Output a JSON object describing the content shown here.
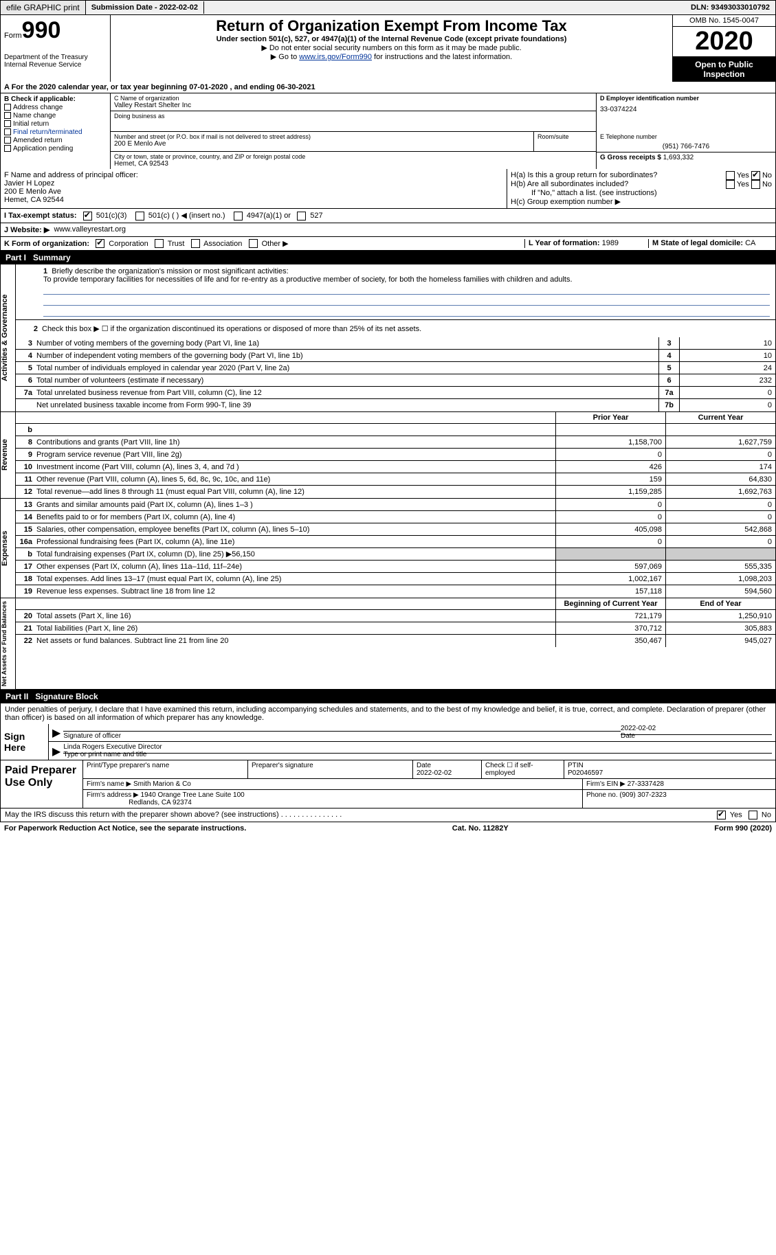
{
  "topbar": {
    "efile": "efile GRAPHIC print",
    "submission": "Submission Date - 2022-02-02",
    "dln": "DLN: 93493033010792"
  },
  "header": {
    "form_label": "Form",
    "form_no": "990",
    "dept": "Department of the Treasury\nInternal Revenue Service",
    "title": "Return of Organization Exempt From Income Tax",
    "subtitle": "Under section 501(c), 527, or 4947(a)(1) of the Internal Revenue Code (except private foundations)",
    "note1": "▶ Do not enter social security numbers on this form as it may be made public.",
    "note2_pre": "▶ Go to ",
    "note2_link": "www.irs.gov/Form990",
    "note2_post": " for instructions and the latest information.",
    "omb": "OMB No. 1545-0047",
    "year": "2020",
    "inspect": "Open to Public Inspection"
  },
  "lineA": "A For the 2020 calendar year, or tax year beginning 07-01-2020     , and ending 06-30-2021",
  "B": {
    "check_label": "B Check if applicable:",
    "items": [
      "Address change",
      "Name change",
      "Initial return",
      "Final return/terminated",
      "Amended return",
      "Application pending"
    ]
  },
  "C": {
    "name_label": "C Name of organization",
    "name": "Valley Restart Shelter Inc",
    "dba_label": "Doing business as",
    "dba": "",
    "addr_label": "Number and street (or P.O. box if mail is not delivered to street address)",
    "room_label": "Room/suite",
    "addr": "200 E Menlo Ave",
    "city_label": "City or town, state or province, country, and ZIP or foreign postal code",
    "city": "Hemet, CA   92543"
  },
  "D": {
    "label": "D Employer identification number",
    "value": "33-0374224"
  },
  "E": {
    "label": "E Telephone number",
    "value": "(951) 766-7476"
  },
  "G": {
    "label": "G Gross receipts $",
    "value": "1,693,332"
  },
  "F": {
    "label": "F  Name and address of principal officer:",
    "name": "Javier H Lopez",
    "addr1": "200 E Menlo Ave",
    "addr2": "Hemet, CA   92544"
  },
  "H": {
    "a": "H(a)  Is this a group return for subordinates?",
    "b": "H(b) Are all subordinates included?",
    "b_note": "If \"No,\" attach a list. (see instructions)",
    "c": "H(c) Group exemption number ▶",
    "yes": "Yes",
    "no": "No"
  },
  "I": {
    "label": "I    Tax-exempt status:",
    "o1": "501(c)(3)",
    "o2": "501(c) (  )",
    "o2b": "◀ (insert no.)",
    "o3": "4947(a)(1) or",
    "o4": "527"
  },
  "J": {
    "label": "J   Website: ▶",
    "value": "www.valleyrestart.org"
  },
  "K": {
    "label": "K Form of organization:",
    "o1": "Corporation",
    "o2": "Trust",
    "o3": "Association",
    "o4": "Other ▶"
  },
  "L": {
    "label": "L Year of formation:",
    "value": "1989"
  },
  "M": {
    "label": "M State of legal domicile:",
    "value": "CA"
  },
  "part1": {
    "num": "Part I",
    "title": "Summary"
  },
  "summary": {
    "q1": "Briefly describe the organization's mission or most significant activities:",
    "mission": "To provide temporary facilities for necessities of life and for re-entry as a productive member of society, for both the homeless families with children and adults.",
    "q2": "Check this box ▶ ☐  if the organization discontinued its operations or disposed of more than 25% of its net assets.",
    "lines": [
      {
        "n": "3",
        "t": "Number of voting members of the governing body (Part VI, line 1a)",
        "bn": "3",
        "v": "10"
      },
      {
        "n": "4",
        "t": "Number of independent voting members of the governing body (Part VI, line 1b)",
        "bn": "4",
        "v": "10"
      },
      {
        "n": "5",
        "t": "Total number of individuals employed in calendar year 2020 (Part V, line 2a)",
        "bn": "5",
        "v": "24"
      },
      {
        "n": "6",
        "t": "Total number of volunteers (estimate if necessary)",
        "bn": "6",
        "v": "232"
      },
      {
        "n": "7a",
        "t": "Total unrelated business revenue from Part VIII, column (C), line 12",
        "bn": "7a",
        "v": "0"
      },
      {
        "n": "",
        "t": "Net unrelated business taxable income from Form 990-T, line 39",
        "bn": "7b",
        "v": "0"
      }
    ]
  },
  "fin": {
    "hdr_prior": "Prior Year",
    "hdr_curr": "Current Year",
    "revenue_label": "Revenue",
    "expenses_label": "Expenses",
    "net_label": "Net Assets or Fund Balances",
    "revenue": [
      {
        "n": "b",
        "t": "",
        "c1": "",
        "c2": ""
      },
      {
        "n": "8",
        "t": "Contributions and grants (Part VIII, line 1h)",
        "c1": "1,158,700",
        "c2": "1,627,759"
      },
      {
        "n": "9",
        "t": "Program service revenue (Part VIII, line 2g)",
        "c1": "0",
        "c2": "0"
      },
      {
        "n": "10",
        "t": "Investment income (Part VIII, column (A), lines 3, 4, and 7d )",
        "c1": "426",
        "c2": "174"
      },
      {
        "n": "11",
        "t": "Other revenue (Part VIII, column (A), lines 5, 6d, 8c, 9c, 10c, and 11e)",
        "c1": "159",
        "c2": "64,830"
      },
      {
        "n": "12",
        "t": "Total revenue—add lines 8 through 11 (must equal Part VIII, column (A), line 12)",
        "c1": "1,159,285",
        "c2": "1,692,763"
      }
    ],
    "expenses": [
      {
        "n": "13",
        "t": "Grants and similar amounts paid (Part IX, column (A), lines 1–3 )",
        "c1": "0",
        "c2": "0"
      },
      {
        "n": "14",
        "t": "Benefits paid to or for members (Part IX, column (A), line 4)",
        "c1": "0",
        "c2": "0"
      },
      {
        "n": "15",
        "t": "Salaries, other compensation, employee benefits (Part IX, column (A), lines 5–10)",
        "c1": "405,098",
        "c2": "542,868"
      },
      {
        "n": "16a",
        "t": "Professional fundraising fees (Part IX, column (A), line 11e)",
        "c1": "0",
        "c2": "0"
      },
      {
        "n": "b",
        "t": "Total fundraising expenses (Part IX, column (D), line 25) ▶56,150",
        "c1": "shade",
        "c2": "shade"
      },
      {
        "n": "17",
        "t": "Other expenses (Part IX, column (A), lines 11a–11d, 11f–24e)",
        "c1": "597,069",
        "c2": "555,335"
      },
      {
        "n": "18",
        "t": "Total expenses. Add lines 13–17 (must equal Part IX, column (A), line 25)",
        "c1": "1,002,167",
        "c2": "1,098,203"
      },
      {
        "n": "19",
        "t": "Revenue less expenses. Subtract line 18 from line 12",
        "c1": "157,118",
        "c2": "594,560"
      }
    ],
    "net_hdr_prior": "Beginning of Current Year",
    "net_hdr_curr": "End of Year",
    "net": [
      {
        "n": "20",
        "t": "Total assets (Part X, line 16)",
        "c1": "721,179",
        "c2": "1,250,910"
      },
      {
        "n": "21",
        "t": "Total liabilities (Part X, line 26)",
        "c1": "370,712",
        "c2": "305,883"
      },
      {
        "n": "22",
        "t": "Net assets or fund balances. Subtract line 21 from line 20",
        "c1": "350,467",
        "c2": "945,027"
      }
    ]
  },
  "part2": {
    "num": "Part II",
    "title": "Signature Block"
  },
  "sig": {
    "penalty": "Under penalties of perjury, I declare that I have examined this return, including accompanying schedules and statements, and to the best of my knowledge and belief, it is true, correct, and complete. Declaration of preparer (other than officer) is based on all information of which preparer has any knowledge.",
    "sign_here": "Sign Here",
    "sig_officer": "Signature of officer",
    "date_label": "Date",
    "date": "2022-02-02",
    "typed": "Linda Rogers  Executive Director",
    "typed_label": "Type or print name and title"
  },
  "prep": {
    "title": "Paid Preparer Use Only",
    "pt_label": "Print/Type preparer's name",
    "sig_label": "Preparer's signature",
    "date_label": "Date",
    "date": "2022-02-02",
    "check_label": "Check ☐ if self-employed",
    "ptin_label": "PTIN",
    "ptin": "P02046597",
    "firm_name_label": "Firm's name    ▶",
    "firm_name": "Smith Marion & Co",
    "firm_ein_label": "Firm's EIN ▶",
    "firm_ein": "27-3337428",
    "firm_addr_label": "Firm's address ▶",
    "firm_addr1": "1940 Orange Tree Lane Suite 100",
    "firm_addr2": "Redlands, CA   92374",
    "phone_label": "Phone no.",
    "phone": "(909) 307-2323"
  },
  "irs_q": "May the IRS discuss this return with the preparer shown above? (see instructions)",
  "footer": {
    "pra": "For Paperwork Reduction Act Notice, see the separate instructions.",
    "cat": "Cat. No. 11282Y",
    "form": "Form 990 (2020)"
  }
}
